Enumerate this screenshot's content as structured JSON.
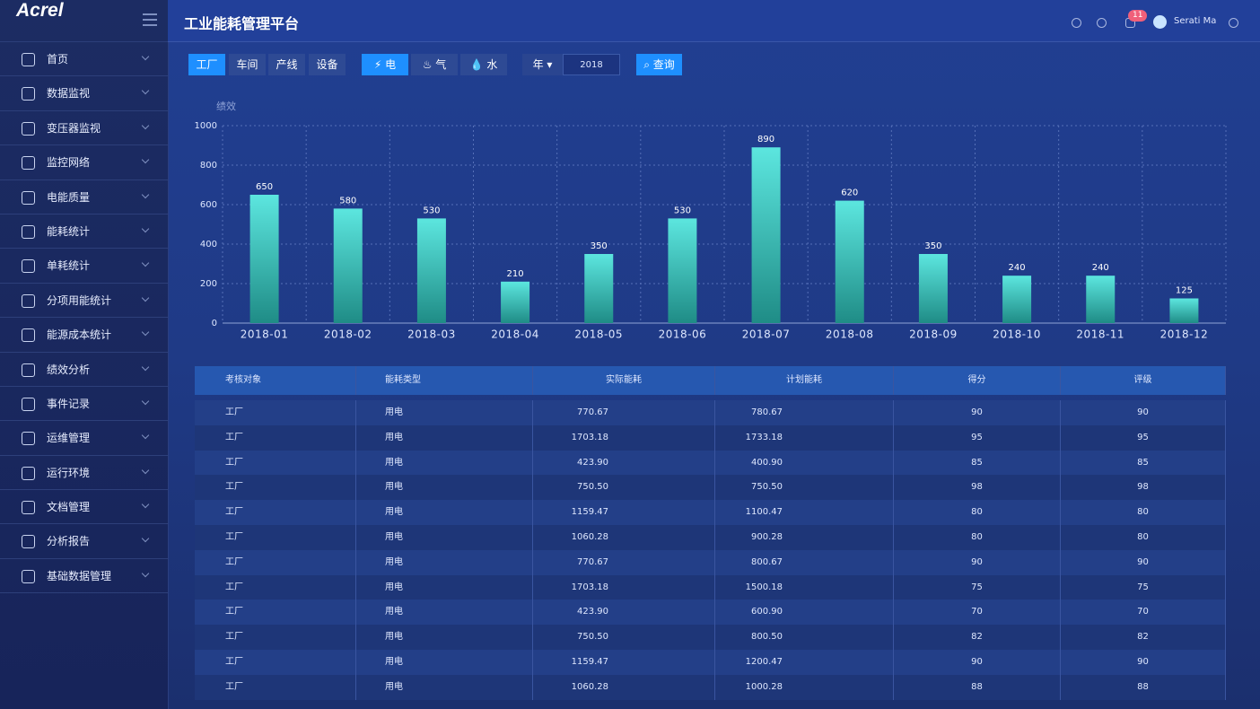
{
  "sidebar": {
    "logo": "Acrel",
    "menu": [
      "首页",
      "数据监视",
      "变压器监视",
      "监控网络",
      "电能质量",
      "能耗统计",
      "单耗统计",
      "分项用能统计",
      "能源成本统计",
      "绩效分析",
      "事件记录",
      "运维管理",
      "运行环境",
      "文档管理",
      "分析报告",
      "基础数据管理"
    ]
  },
  "header": {
    "title": "工业能耗管理平台",
    "notification_count": 11,
    "user": "Serati Ma"
  },
  "filters": {
    "scope_tabs": [
      "工厂",
      "车间",
      "产线",
      "设备"
    ],
    "energy_tabs": [
      "电",
      "气",
      "水"
    ],
    "period": "年",
    "year": "2018",
    "query": "查询"
  },
  "chart_data": {
    "type": "bar",
    "y_label": "绩效",
    "categories": [
      "2018-01",
      "2018-02",
      "2018-03",
      "2018-04",
      "2018-05",
      "2018-06",
      "2018-07",
      "2018-08",
      "2018-09",
      "2018-10",
      "2018-11",
      "2018-12"
    ],
    "values": [
      650,
      580,
      530,
      210,
      350,
      530,
      890,
      620,
      350,
      240,
      240,
      125
    ],
    "color": "#5ce6df",
    "ylim": [
      0,
      1000
    ],
    "yticks": [
      0,
      200,
      400,
      600,
      800,
      1000
    ],
    "grid": true
  },
  "table": {
    "columns": [
      "考核对象",
      "能耗类型",
      "实际能耗",
      "计划能耗",
      "得分",
      "评级"
    ],
    "rows": [
      [
        "工厂",
        "用电",
        "770.67",
        "780.67",
        90,
        90
      ],
      [
        "工厂",
        "用电",
        "1703.18",
        "1733.18",
        95,
        95
      ],
      [
        "工厂",
        "用电",
        "423.90",
        "400.90",
        85,
        85
      ],
      [
        "工厂",
        "用电",
        "750.50",
        "750.50",
        98,
        98
      ],
      [
        "工厂",
        "用电",
        "1159.47",
        "1100.47",
        80,
        80
      ],
      [
        "工厂",
        "用电",
        "1060.28",
        "900.28",
        80,
        80
      ],
      [
        "工厂",
        "用电",
        "770.67",
        "800.67",
        90,
        90
      ],
      [
        "工厂",
        "用电",
        "1703.18",
        "1500.18",
        75,
        75
      ],
      [
        "工厂",
        "用电",
        "423.90",
        "600.90",
        70,
        70
      ],
      [
        "工厂",
        "用电",
        "750.50",
        "800.50",
        82,
        82
      ],
      [
        "工厂",
        "用电",
        "1159.47",
        "1200.47",
        90,
        90
      ],
      [
        "工厂",
        "用电",
        "1060.28",
        "1000.28",
        88,
        88
      ]
    ]
  }
}
